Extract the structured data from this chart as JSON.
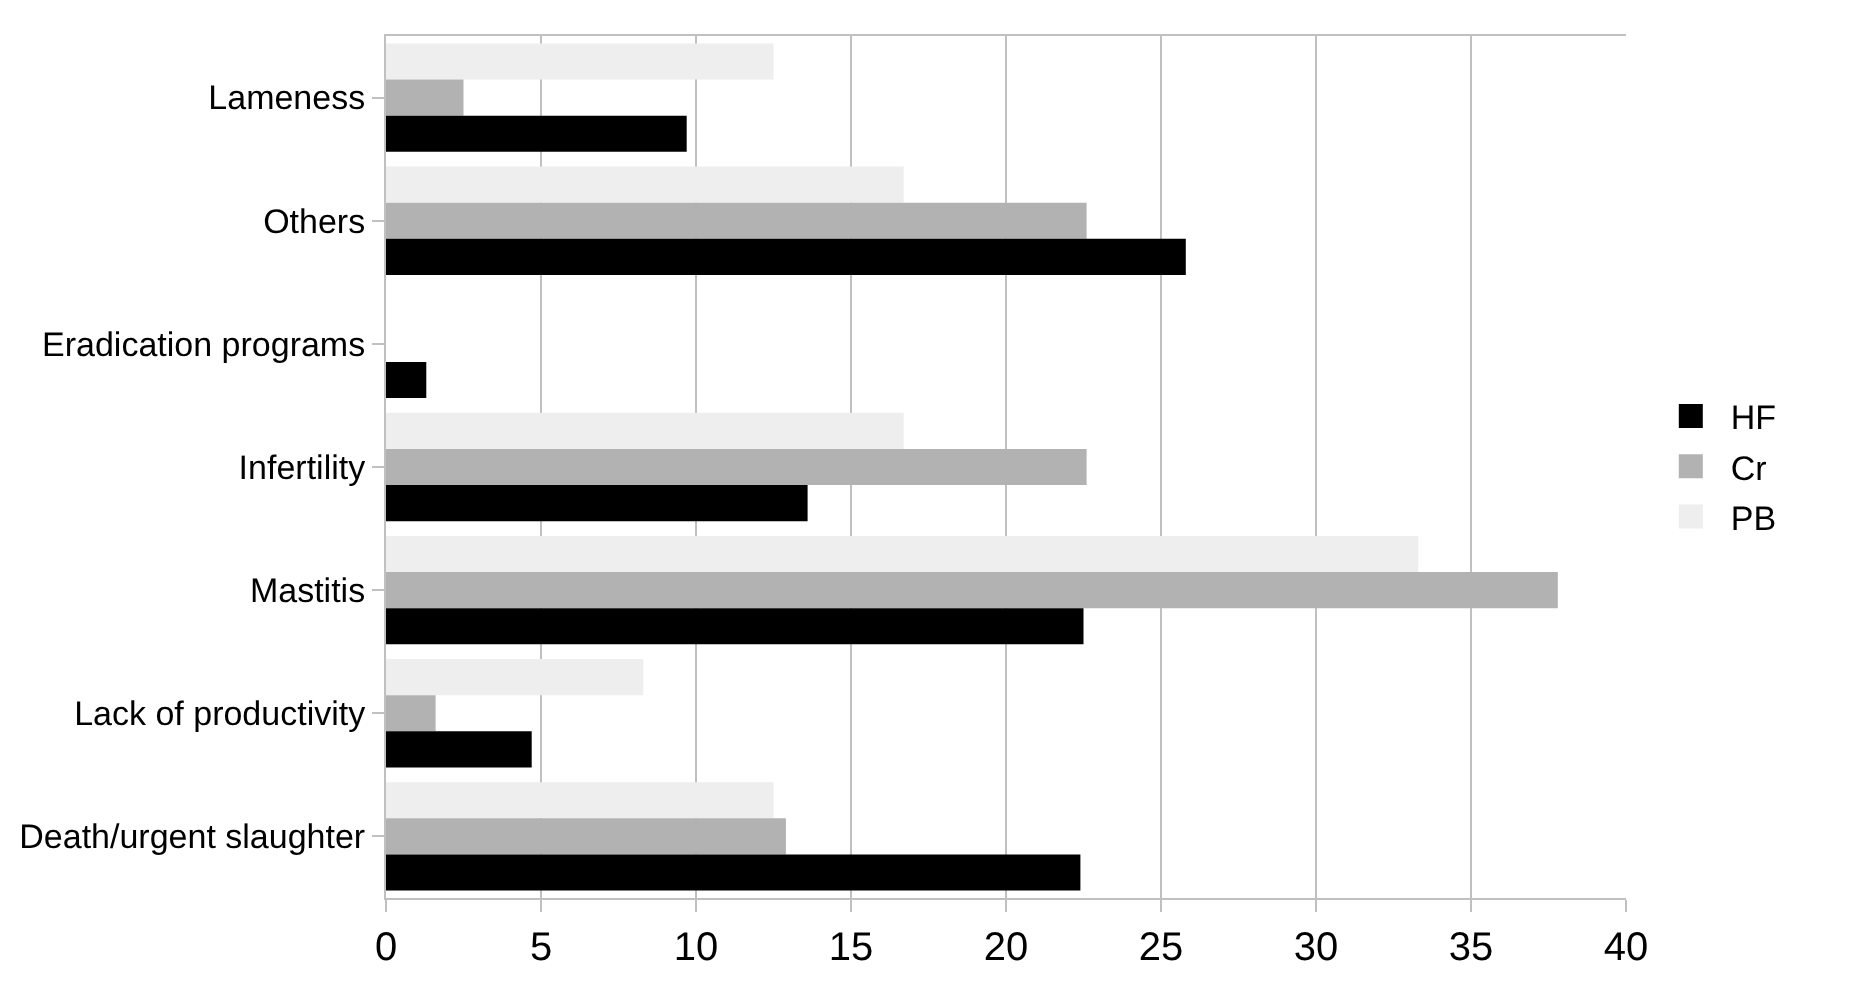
{
  "chart_data": {
    "type": "bar",
    "orientation": "horizontal",
    "categories": [
      "Lameness",
      "Others",
      "Eradication programs",
      "Infertility",
      "Mastitis",
      "Lack of productivity",
      "Death/urgent slaughter"
    ],
    "series": [
      {
        "name": "HF",
        "color": "#000000",
        "values": [
          9.7,
          25.8,
          1.3,
          13.6,
          22.5,
          4.7,
          22.4
        ]
      },
      {
        "name": "Cr",
        "color": "#b2b2b2",
        "values": [
          2.5,
          22.6,
          null,
          22.6,
          37.8,
          1.6,
          12.9
        ]
      },
      {
        "name": "PB",
        "color": "#eeeeee",
        "values": [
          12.5,
          16.7,
          null,
          16.7,
          33.3,
          8.3,
          12.5
        ]
      }
    ],
    "xlim": [
      0,
      40
    ],
    "xticks": [
      0,
      5,
      10,
      15,
      20,
      25,
      30,
      35,
      40
    ],
    "grid": "x",
    "legend": "right"
  }
}
